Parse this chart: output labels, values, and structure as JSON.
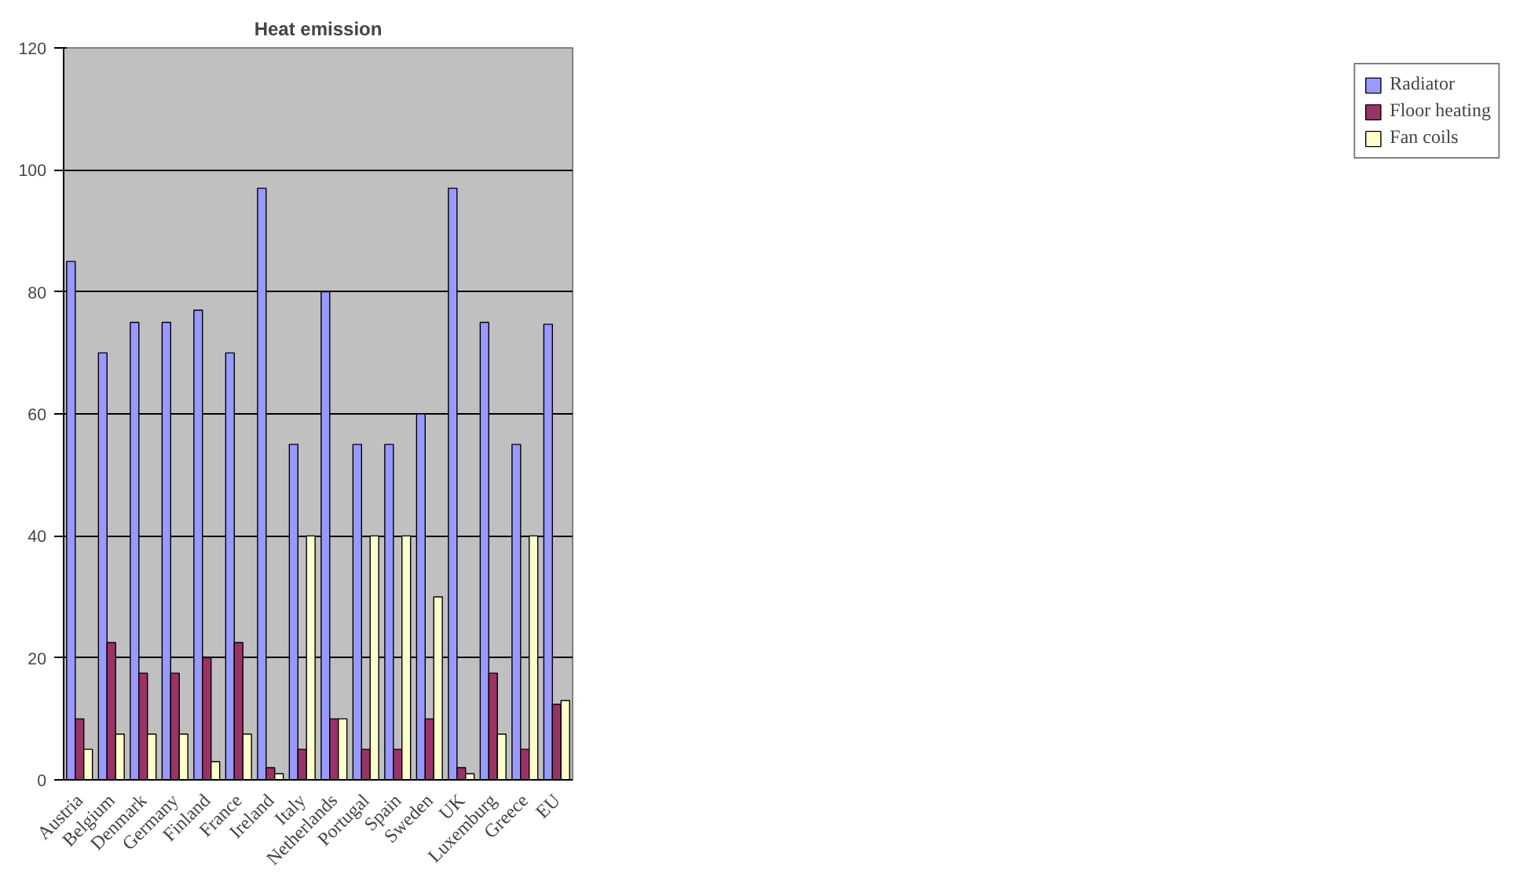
{
  "chart_data": {
    "type": "bar",
    "title": "Heat emission",
    "categories": [
      "Austria",
      "Belgium",
      "Denmark",
      "Germany",
      "Finland",
      "France",
      "Ireland",
      "Italy",
      "Netherlands",
      "Portugal",
      "Spain",
      "Sweden",
      "UK",
      "Luxemburg",
      "Greece",
      "EU"
    ],
    "series": [
      {
        "name": "Radiator",
        "color": "#9999ff",
        "values": [
          85,
          70,
          75,
          75,
          77,
          70,
          97,
          55,
          80,
          55,
          55,
          60,
          97,
          75,
          55,
          74.7
        ]
      },
      {
        "name": "Floor heating",
        "color": "#993366",
        "values": [
          10,
          22.5,
          17.5,
          17.5,
          20,
          22.5,
          2,
          5,
          10,
          5,
          5,
          10,
          2,
          17.5,
          5,
          12.4
        ]
      },
      {
        "name": "Fan coils",
        "color": "#ffffcc",
        "values": [
          5,
          7.5,
          7.5,
          7.5,
          3,
          7.5,
          1,
          40,
          10,
          40,
          40,
          30,
          1,
          7.5,
          40,
          13
        ]
      }
    ],
    "ylim": [
      0,
      120
    ],
    "yticks": [
      0,
      20,
      40,
      60,
      80,
      100,
      120
    ],
    "grid": "y",
    "legend": "right"
  }
}
